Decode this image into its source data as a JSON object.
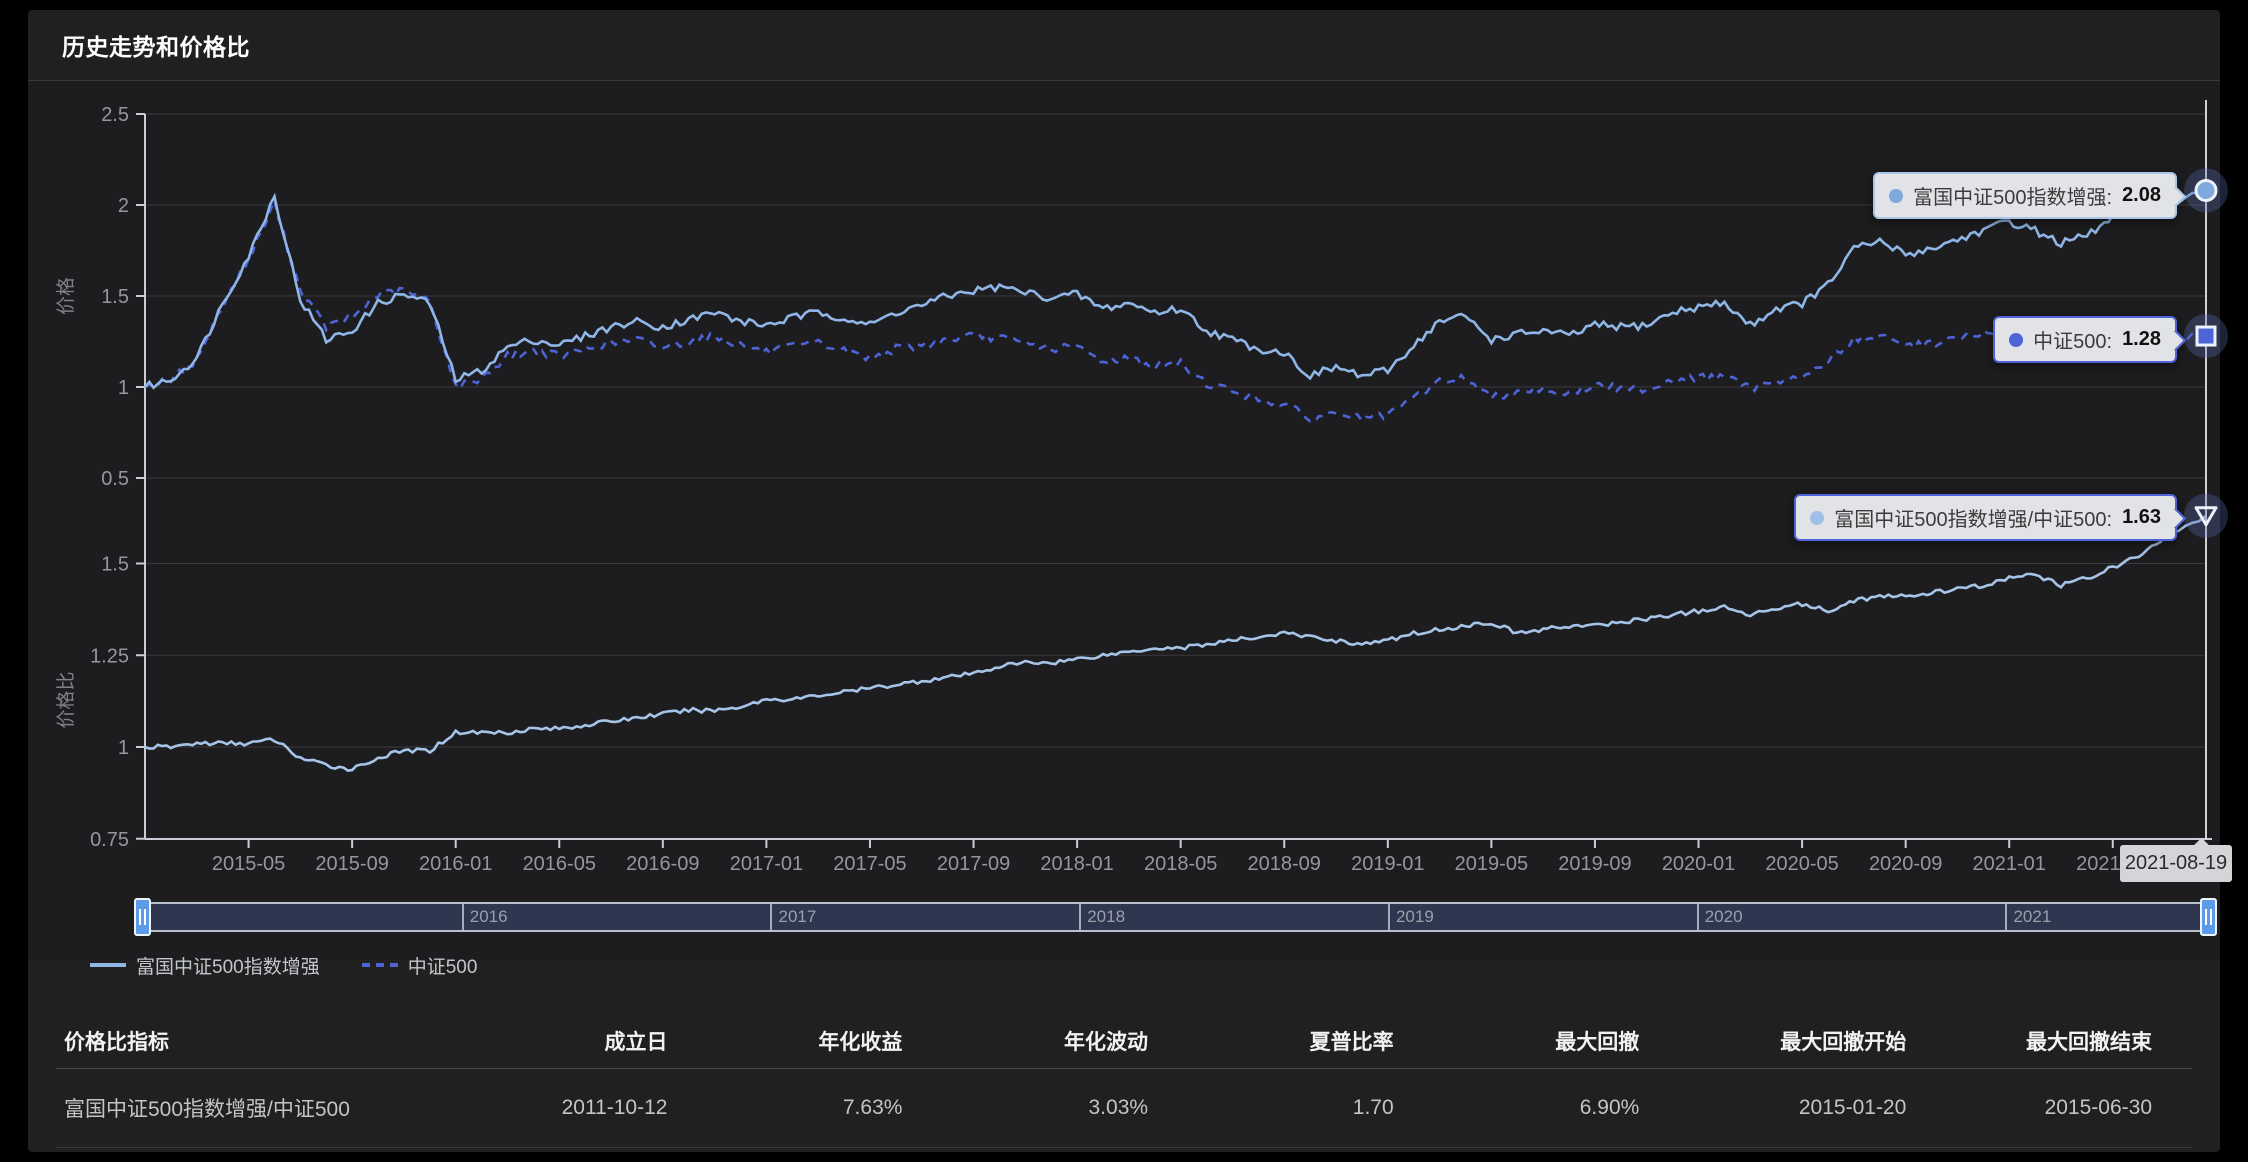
{
  "header": {
    "title": "历史走势和价格比"
  },
  "colors": {
    "background": "#000000",
    "card": "#202020",
    "grid_line": "#3a3a3d",
    "axis_line": "#c8cdd9",
    "axis_label": "#95979c",
    "axis_name": "#808289",
    "crosshair": "#e5e6e8",
    "series_fund": "#8fb6e6",
    "series_index": "#4e63d8",
    "series_ratio": "#a6c4e8",
    "tooltip_bg": "#e2e3e6",
    "datazoom_handle": "#5d9bea"
  },
  "chart_data": [
    {
      "type": "line",
      "title": "价格",
      "xlabel": "",
      "ylabel": "价格",
      "ylim": [
        0.25,
        2.55
      ],
      "y_ticks": [
        2.5,
        2,
        1.5,
        1,
        0.5
      ],
      "grid": true,
      "legend_position": "bottom-left",
      "x": [
        "2015-01",
        "2015-02",
        "2015-03",
        "2015-04",
        "2015-05",
        "2015-06",
        "2015-07",
        "2015-08",
        "2015-09",
        "2015-10",
        "2015-11",
        "2015-12",
        "2016-01",
        "2016-02",
        "2016-03",
        "2016-04",
        "2016-05",
        "2016-06",
        "2016-07",
        "2016-08",
        "2016-09",
        "2016-10",
        "2016-11",
        "2016-12",
        "2017-01",
        "2017-02",
        "2017-03",
        "2017-04",
        "2017-05",
        "2017-06",
        "2017-07",
        "2017-08",
        "2017-09",
        "2017-10",
        "2017-11",
        "2017-12",
        "2018-01",
        "2018-02",
        "2018-03",
        "2018-04",
        "2018-05",
        "2018-06",
        "2018-07",
        "2018-08",
        "2018-09",
        "2018-10",
        "2018-11",
        "2018-12",
        "2019-01",
        "2019-02",
        "2019-03",
        "2019-04",
        "2019-05",
        "2019-06",
        "2019-07",
        "2019-08",
        "2019-09",
        "2019-10",
        "2019-11",
        "2019-12",
        "2020-01",
        "2020-02",
        "2020-03",
        "2020-04",
        "2020-05",
        "2020-06",
        "2020-07",
        "2020-08",
        "2020-09",
        "2020-10",
        "2020-11",
        "2020-12",
        "2021-01",
        "2021-02",
        "2021-03",
        "2021-04",
        "2021-05",
        "2021-06",
        "2021-07",
        "2021-08"
      ],
      "series": [
        {
          "name": "富国中证500指数增强",
          "line_style": "solid",
          "color": "#8fb6e6",
          "end_value": 2.08,
          "values": [
            1.0,
            1.04,
            1.16,
            1.46,
            1.72,
            2.05,
            1.48,
            1.26,
            1.31,
            1.46,
            1.51,
            1.46,
            1.04,
            1.09,
            1.22,
            1.26,
            1.23,
            1.28,
            1.33,
            1.36,
            1.33,
            1.37,
            1.41,
            1.36,
            1.34,
            1.38,
            1.41,
            1.38,
            1.34,
            1.41,
            1.45,
            1.5,
            1.53,
            1.55,
            1.52,
            1.49,
            1.51,
            1.43,
            1.46,
            1.41,
            1.43,
            1.31,
            1.26,
            1.21,
            1.19,
            1.06,
            1.11,
            1.06,
            1.09,
            1.23,
            1.36,
            1.39,
            1.26,
            1.29,
            1.31,
            1.28,
            1.34,
            1.33,
            1.34,
            1.41,
            1.44,
            1.46,
            1.34,
            1.43,
            1.46,
            1.56,
            1.76,
            1.8,
            1.73,
            1.76,
            1.81,
            1.86,
            1.91,
            1.86,
            1.79,
            1.83,
            1.93,
            2.0,
            1.98,
            2.08
          ]
        },
        {
          "name": "中证500",
          "line_style": "dashed",
          "color": "#4e63d8",
          "end_value": 1.28,
          "values": [
            1.0,
            1.04,
            1.15,
            1.45,
            1.7,
            2.01,
            1.53,
            1.33,
            1.38,
            1.51,
            1.53,
            1.47,
            1.0,
            1.05,
            1.17,
            1.2,
            1.17,
            1.21,
            1.24,
            1.26,
            1.22,
            1.25,
            1.28,
            1.23,
            1.19,
            1.22,
            1.24,
            1.2,
            1.16,
            1.21,
            1.23,
            1.26,
            1.28,
            1.27,
            1.24,
            1.21,
            1.22,
            1.14,
            1.16,
            1.11,
            1.13,
            1.02,
            0.98,
            0.93,
            0.91,
            0.82,
            0.86,
            0.83,
            0.84,
            0.94,
            1.03,
            1.05,
            0.94,
            0.98,
            0.99,
            0.96,
            1.01,
            0.99,
            0.99,
            1.04,
            1.05,
            1.06,
            0.99,
            1.04,
            1.05,
            1.14,
            1.26,
            1.28,
            1.23,
            1.24,
            1.27,
            1.29,
            1.31,
            1.27,
            1.24,
            1.25,
            1.3,
            1.32,
            1.26,
            1.28
          ]
        }
      ]
    },
    {
      "type": "line",
      "title": "价格比",
      "xlabel": "",
      "ylabel": "价格比",
      "ylim": [
        0.72,
        1.68
      ],
      "y_ticks": [
        1.5,
        1.25,
        1,
        0.75
      ],
      "grid": true,
      "x": [
        "2015-01",
        "2015-02",
        "2015-03",
        "2015-04",
        "2015-05",
        "2015-06",
        "2015-07",
        "2015-08",
        "2015-09",
        "2015-10",
        "2015-11",
        "2015-12",
        "2016-01",
        "2016-02",
        "2016-03",
        "2016-04",
        "2016-05",
        "2016-06",
        "2016-07",
        "2016-08",
        "2016-09",
        "2016-10",
        "2016-11",
        "2016-12",
        "2017-01",
        "2017-02",
        "2017-03",
        "2017-04",
        "2017-05",
        "2017-06",
        "2017-07",
        "2017-08",
        "2017-09",
        "2017-10",
        "2017-11",
        "2017-12",
        "2018-01",
        "2018-02",
        "2018-03",
        "2018-04",
        "2018-05",
        "2018-06",
        "2018-07",
        "2018-08",
        "2018-09",
        "2018-10",
        "2018-11",
        "2018-12",
        "2019-01",
        "2019-02",
        "2019-03",
        "2019-04",
        "2019-05",
        "2019-06",
        "2019-07",
        "2019-08",
        "2019-09",
        "2019-10",
        "2019-11",
        "2019-12",
        "2020-01",
        "2020-02",
        "2020-03",
        "2020-04",
        "2020-05",
        "2020-06",
        "2020-07",
        "2020-08",
        "2020-09",
        "2020-10",
        "2020-11",
        "2020-12",
        "2021-01",
        "2021-02",
        "2021-03",
        "2021-04",
        "2021-05",
        "2021-06",
        "2021-07",
        "2021-08"
      ],
      "series": [
        {
          "name": "富国中证500指数增强/中证500",
          "line_style": "solid",
          "color": "#a6c4e8",
          "end_value": 1.63,
          "values": [
            1.0,
            1.0,
            1.01,
            1.01,
            1.01,
            1.02,
            0.97,
            0.95,
            0.94,
            0.97,
            0.99,
            0.99,
            1.04,
            1.04,
            1.04,
            1.05,
            1.05,
            1.06,
            1.07,
            1.08,
            1.09,
            1.1,
            1.1,
            1.11,
            1.13,
            1.13,
            1.14,
            1.15,
            1.16,
            1.17,
            1.18,
            1.19,
            1.2,
            1.22,
            1.23,
            1.23,
            1.24,
            1.25,
            1.26,
            1.27,
            1.27,
            1.28,
            1.29,
            1.3,
            1.31,
            1.3,
            1.29,
            1.28,
            1.29,
            1.31,
            1.32,
            1.33,
            1.34,
            1.31,
            1.32,
            1.33,
            1.33,
            1.34,
            1.35,
            1.36,
            1.37,
            1.38,
            1.36,
            1.38,
            1.39,
            1.37,
            1.4,
            1.41,
            1.41,
            1.42,
            1.43,
            1.44,
            1.46,
            1.47,
            1.44,
            1.46,
            1.49,
            1.52,
            1.57,
            1.63
          ]
        }
      ]
    }
  ],
  "x_axis": {
    "ticks": [
      "2015-05",
      "2015-09",
      "2016-01",
      "2016-05",
      "2016-09",
      "2017-01",
      "2017-05",
      "2017-09",
      "2018-01",
      "2018-05",
      "2018-09",
      "2019-01",
      "2019-05",
      "2019-09",
      "2020-01",
      "2020-05",
      "2020-09",
      "2021-01",
      "2021-05"
    ]
  },
  "crosshair": {
    "date": "2021-08-19"
  },
  "tooltips": [
    {
      "series": "富国中证500指数增强",
      "label": "富国中证500指数增强:",
      "value": "2.08",
      "dot_color": "#7fa9dc",
      "marker": "circle"
    },
    {
      "series": "中证500",
      "label": "中证500:",
      "value": "1.28",
      "dot_color": "#4e63d8",
      "marker": "square"
    },
    {
      "series": "富国中证500指数增强/中证500",
      "label": "富国中证500指数增强/中证500:",
      "value": "1.63",
      "dot_color": "#9fc0e8",
      "marker": "triangle-down"
    }
  ],
  "markers": [
    {
      "shape": "circle",
      "chart": 0,
      "value": 2.08,
      "fill": "#7fa9dc"
    },
    {
      "shape": "square",
      "chart": 0,
      "value": 1.28,
      "fill": "#4e63d8"
    },
    {
      "shape": "triangle-down",
      "chart": 1,
      "value": 1.63,
      "fill": "none"
    }
  ],
  "datazoom": {
    "years": [
      "2016",
      "2017",
      "2018",
      "2019",
      "2020",
      "2021"
    ]
  },
  "legend": {
    "items": [
      {
        "label": "富国中证500指数增强",
        "style": "solid",
        "color": "#8fb6e6"
      },
      {
        "label": "中证500",
        "style": "dashed",
        "color": "#4e63d8"
      }
    ]
  },
  "table": {
    "headers": [
      "价格比指标",
      "成立日",
      "年化收益",
      "年化波动",
      "夏普比率",
      "最大回撤",
      "最大回撤开始",
      "最大回撤结束"
    ],
    "rows": [
      [
        "富国中证500指数增强/中证500",
        "2011-10-12",
        "7.63%",
        "3.03%",
        "1.70",
        "6.90%",
        "2015-01-20",
        "2015-06-30"
      ]
    ]
  }
}
